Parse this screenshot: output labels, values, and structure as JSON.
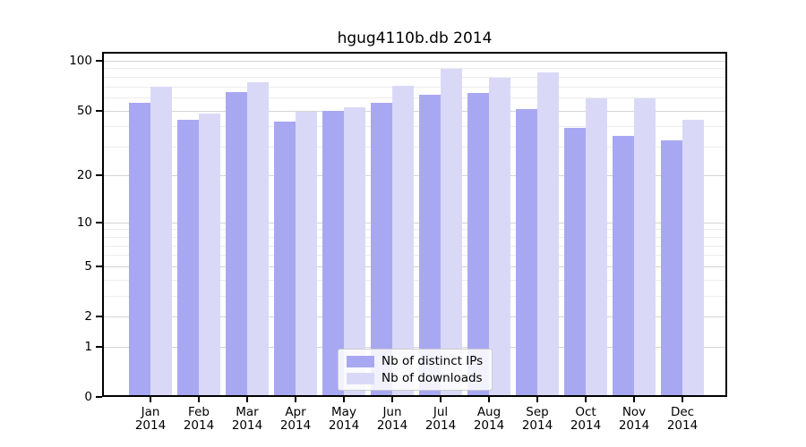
{
  "chart_data": {
    "type": "bar",
    "title": "hgug4110b.db 2014",
    "categories": [
      "Jan",
      "Feb",
      "Mar",
      "Apr",
      "May",
      "Jun",
      "Jul",
      "Aug",
      "Sep",
      "Oct",
      "Nov",
      "Dec"
    ],
    "category_year": "2014",
    "series": [
      {
        "name": "Nb of distinct IPs",
        "color": "#a8a8f2",
        "values": [
          56,
          44,
          65,
          43,
          50,
          56,
          62,
          64,
          51,
          39,
          35,
          33
        ]
      },
      {
        "name": "Nb of downloads",
        "color": "#d9d9f7",
        "values": [
          70,
          48,
          74,
          49,
          52,
          71,
          89,
          79,
          85,
          59,
          59,
          44
        ]
      }
    ],
    "y_axis": {
      "scale": "log1p",
      "ticks": [
        0,
        1,
        2,
        5,
        10,
        20,
        50,
        100
      ],
      "minor_gridlines": [
        3,
        4,
        6,
        7,
        8,
        9,
        30,
        40,
        60,
        70,
        80,
        90
      ],
      "max": 113
    },
    "x_axis": {
      "tick_anchor": "pair-junction"
    },
    "legend": {
      "position": "bottom-center"
    },
    "grid": true,
    "colors": {
      "grid_major": "#d4d4d4",
      "grid_minor": "#ececec",
      "axis": "#000000",
      "background": "#ffffff"
    }
  }
}
